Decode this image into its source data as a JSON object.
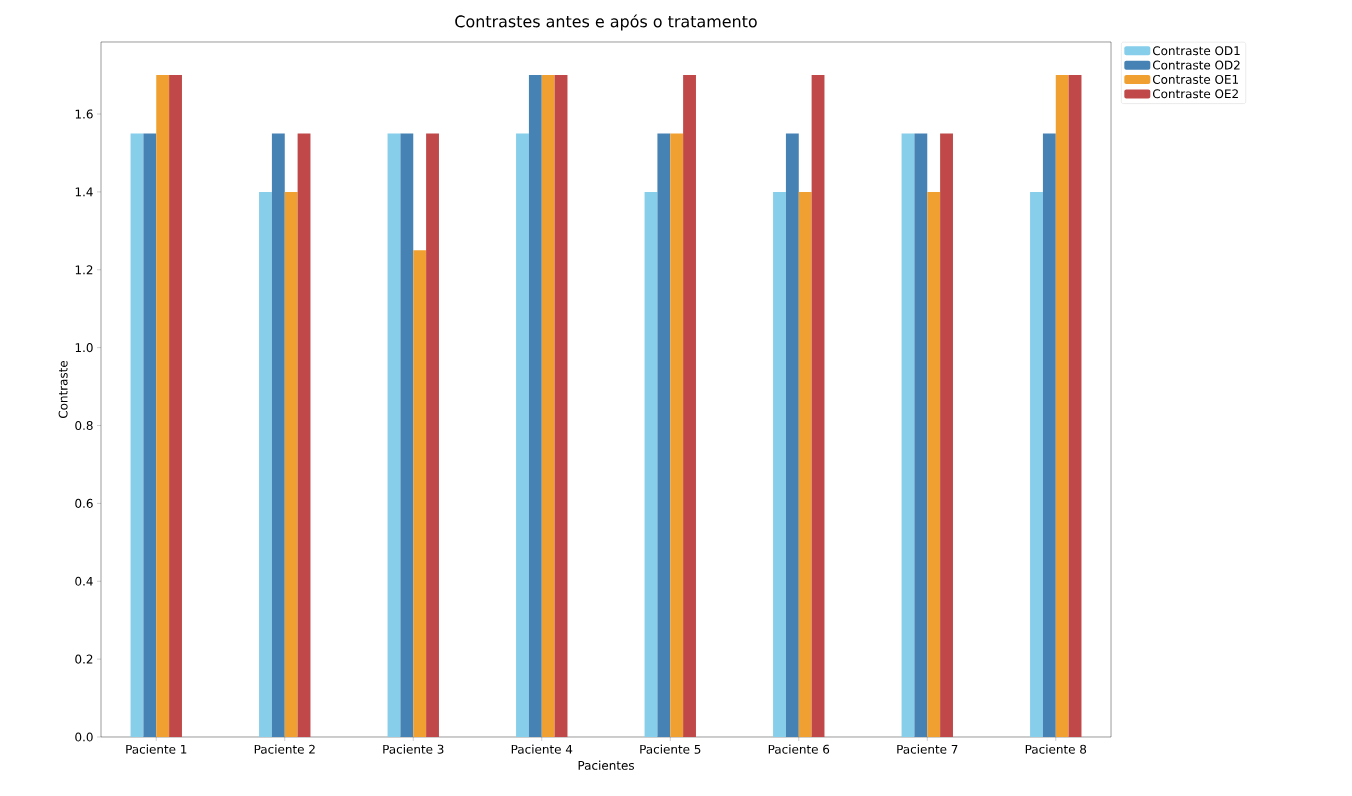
{
  "chart_data": {
    "type": "bar",
    "title": "Contrastes antes e após o tratamento",
    "xlabel": "Pacientes",
    "ylabel": "Contraste",
    "categories": [
      "Paciente 1",
      "Paciente 2",
      "Paciente 3",
      "Paciente 4",
      "Paciente 5",
      "Paciente 6",
      "Paciente 7",
      "Paciente 8"
    ],
    "series": [
      {
        "name": "Contraste OD1",
        "color": "#87ceeb",
        "values": [
          1.55,
          1.4,
          1.55,
          1.55,
          1.4,
          1.4,
          1.55,
          1.4
        ]
      },
      {
        "name": "Contraste OD2",
        "color": "#4682b4",
        "values": [
          1.55,
          1.55,
          1.55,
          1.7,
          1.55,
          1.55,
          1.55,
          1.55
        ]
      },
      {
        "name": "Contraste OE1",
        "color": "#f0a030",
        "values": [
          1.7,
          1.4,
          1.25,
          1.7,
          1.55,
          1.4,
          1.4,
          1.7
        ]
      },
      {
        "name": "Contraste OE2",
        "color": "#c04848",
        "values": [
          1.7,
          1.55,
          1.55,
          1.7,
          1.7,
          1.7,
          1.55,
          1.7
        ]
      }
    ],
    "ylim": [
      0,
      1.785
    ],
    "yticks": [
      {
        "value": 0,
        "label": "0.0"
      },
      {
        "value": 0.2,
        "label": "0.2"
      },
      {
        "value": 0.4,
        "label": "0.4"
      },
      {
        "value": 0.6,
        "label": "0.6"
      },
      {
        "value": 0.8,
        "label": "0.8"
      },
      {
        "value": 1.0,
        "label": "1.0"
      },
      {
        "value": 1.2,
        "label": "1.2"
      },
      {
        "value": 1.4,
        "label": "1.4"
      },
      {
        "value": 1.6,
        "label": "1.6"
      }
    ],
    "legend": "top right",
    "grid": false
  }
}
